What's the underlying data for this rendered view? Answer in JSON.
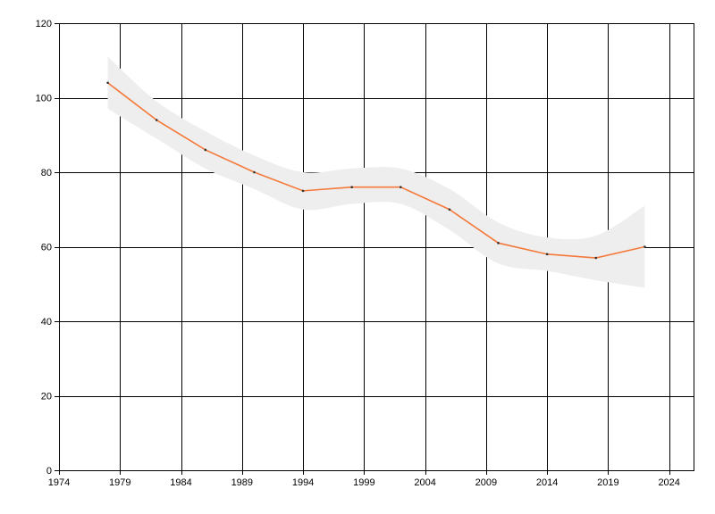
{
  "colors": {
    "line": "#f5793a",
    "band": "#eeeeee",
    "grid": "#000000",
    "marker": "#333333"
  },
  "chart_data": {
    "type": "line",
    "title": "",
    "xlabel": "",
    "ylabel": "",
    "xlim": [
      1974,
      2026
    ],
    "ylim": [
      0,
      120
    ],
    "x_ticks": [
      1974,
      1979,
      1984,
      1989,
      1994,
      1999,
      2004,
      2009,
      2014,
      2019,
      2024
    ],
    "y_ticks": [
      0,
      20,
      40,
      60,
      80,
      100,
      120
    ],
    "x_tick_labels": [
      "1974",
      "1979",
      "1984",
      "1989",
      "1994",
      "1999",
      "2004",
      "2009",
      "2014",
      "2019",
      "2024"
    ],
    "y_tick_labels": [
      "0",
      "20",
      "40",
      "60",
      "80",
      "100",
      "120"
    ],
    "grid": true,
    "legend": "none",
    "series": [
      {
        "x": [
          1978,
          1982,
          1986,
          1990,
          1994,
          1998,
          2002,
          2006,
          2010,
          2014,
          2018,
          2022
        ],
        "y": [
          104,
          94,
          86,
          80,
          75,
          76,
          76,
          70,
          61,
          58,
          57,
          60
        ],
        "band_upper": [
          111,
          99,
          91,
          84.5,
          80,
          81,
          81,
          75.5,
          66.5,
          62.5,
          63,
          71
        ],
        "band_lower": [
          97,
          89,
          81,
          75.5,
          70,
          71.5,
          71.5,
          64.5,
          55.5,
          53.5,
          51,
          49
        ]
      }
    ]
  }
}
